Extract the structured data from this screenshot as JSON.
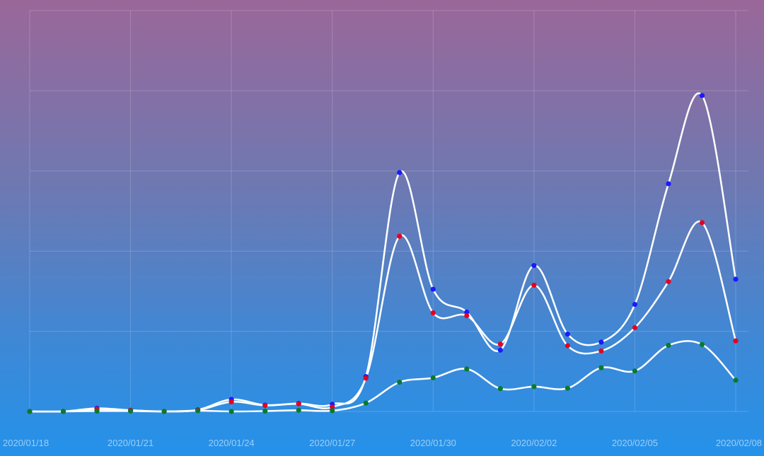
{
  "chart_data": {
    "type": "line",
    "title": "",
    "xlabel": "",
    "ylabel": "",
    "x": [
      "2020/01/18",
      "2020/01/19",
      "2020/01/20",
      "2020/01/21",
      "2020/01/22",
      "2020/01/23",
      "2020/01/24",
      "2020/01/25",
      "2020/01/26",
      "2020/01/27",
      "2020/01/28",
      "2020/01/29",
      "2020/01/30",
      "2020/01/31",
      "2020/02/01",
      "2020/02/02",
      "2020/02/03",
      "2020/02/04",
      "2020/02/05",
      "2020/02/06",
      "2020/02/07",
      "2020/02/08"
    ],
    "x_tick_labels": [
      "2020/01/18",
      "2020/01/21",
      "2020/01/24",
      "2020/01/27",
      "2020/01/30",
      "2020/02/02",
      "2020/02/05",
      "2020/02/08"
    ],
    "x_tick_indices": [
      0,
      3,
      6,
      9,
      12,
      15,
      18,
      21
    ],
    "ylim": [
      0,
      100
    ],
    "y_gridlines": [
      0,
      20,
      40,
      60,
      80,
      100
    ],
    "grid": true,
    "series": [
      {
        "color": "#1a1aff",
        "values": [
          0,
          0,
          0.8,
          0.3,
          0,
          0.4,
          3.0,
          1.6,
          2.0,
          1.8,
          8.7,
          59.6,
          30.5,
          24.8,
          15.3,
          36.4,
          19.3,
          17.3,
          26.7,
          56.8,
          78.8,
          33.0
        ]
      },
      {
        "color": "#e5001f",
        "values": [
          0,
          0,
          0.6,
          0.3,
          0,
          0.3,
          2.4,
          1.5,
          1.9,
          1.1,
          8.3,
          43.7,
          24.6,
          23.9,
          16.8,
          31.5,
          16.4,
          15.1,
          20.9,
          32.4,
          47.1,
          17.6
        ]
      },
      {
        "color": "#0a7a2a",
        "values": [
          0,
          0,
          0.1,
          0.1,
          0,
          0.2,
          0,
          0.1,
          0.3,
          0.2,
          2.1,
          7.3,
          8.4,
          10.6,
          5.7,
          6.2,
          5.8,
          10.9,
          10.1,
          16.5,
          16.7,
          7.8
        ]
      }
    ]
  }
}
